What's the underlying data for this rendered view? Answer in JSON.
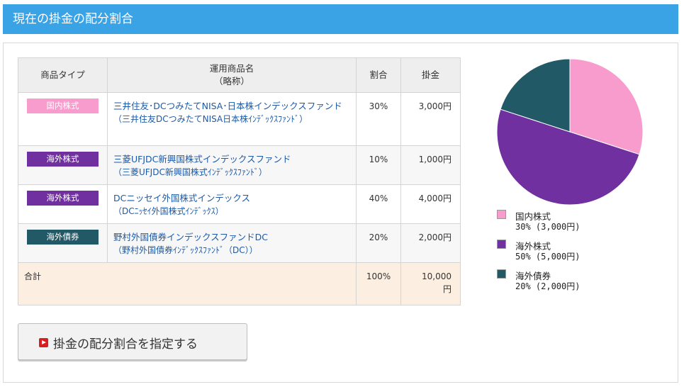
{
  "header": {
    "title": "現在の掛金の配分割合"
  },
  "table": {
    "columns": [
      "商品タイプ",
      "運用商品名",
      "（略称）",
      "割合",
      "掛金"
    ],
    "rows": [
      {
        "type": "国内株式",
        "name": "三井住友･DCつみたてNISA･日本株インデックスファンド",
        "short": "（三井住友DCつみたてNISA日本株ｲﾝﾃﾞｯｸｽﾌｧﾝﾄﾞ）",
        "ratio": "30%",
        "amount": "3,000円"
      },
      {
        "type": "海外株式",
        "name": "三菱UFJDC新興国株式インデックスファンド",
        "short": "（三菱UFJDC新興国株式ｲﾝﾃﾞｯｸｽﾌｧﾝﾄﾞ）",
        "ratio": "10%",
        "amount": "1,000円"
      },
      {
        "type": "海外株式",
        "name": "DCニッセイ外国株式インデックス",
        "short": "（DCﾆｯｾｲ外国株式ｲﾝﾃﾞｯｸｽ）",
        "ratio": "40%",
        "amount": "4,000円"
      },
      {
        "type": "海外債券",
        "name": "野村外国債券インデックスファンドDC",
        "short": "（野村外国債券ｲﾝﾃﾞｯｸｽﾌｧﾝﾄﾞ（DC））",
        "ratio": "20%",
        "amount": "2,000円"
      }
    ],
    "total": {
      "label": "合計",
      "ratio": "100%",
      "amount_line1": "10,000",
      "amount_line2": "円"
    }
  },
  "colors": {
    "domestic_stock": "#f79ccc",
    "foreign_stock": "#7030a0",
    "foreign_bond": "#215967",
    "header": "#39a3e6"
  },
  "chart_data": {
    "type": "pie",
    "slices": [
      {
        "name": "国内株式",
        "value": 30,
        "color": "#f79ccc"
      },
      {
        "name": "海外株式",
        "value": 50,
        "color": "#7030a0"
      },
      {
        "name": "海外債券",
        "value": 20,
        "color": "#215967"
      }
    ]
  },
  "legend": [
    {
      "name": "国内株式",
      "value": "30% (3,000円)",
      "color": "#f79ccc"
    },
    {
      "name": "海外株式",
      "value": "50% (5,000円)",
      "color": "#7030a0"
    },
    {
      "name": "海外債券",
      "value": "20% (2,000円)",
      "color": "#215967"
    }
  ],
  "action": {
    "label": "掛金の配分割合を指定する",
    "icon": "play-icon"
  }
}
